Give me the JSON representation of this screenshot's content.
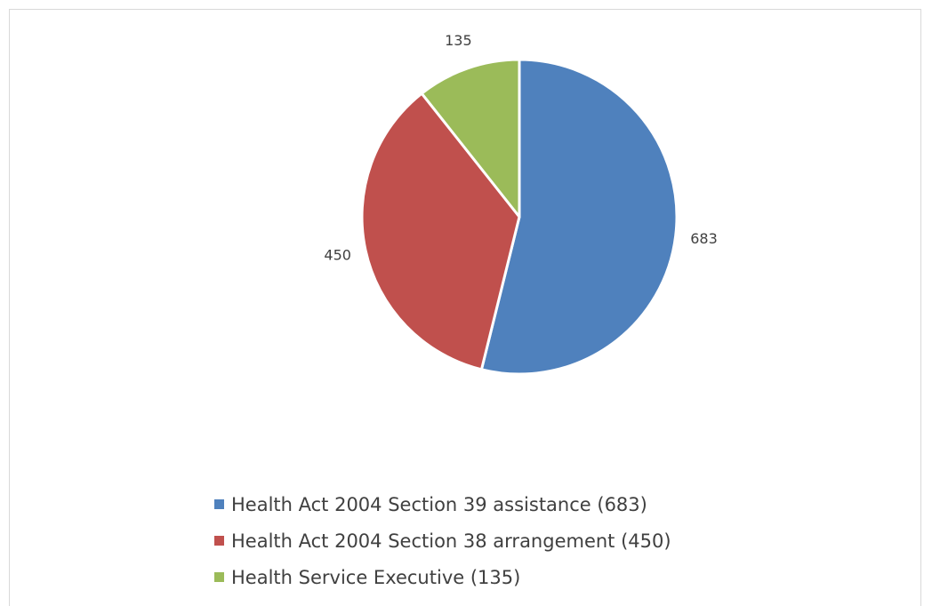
{
  "chart_data": {
    "type": "pie",
    "title": "",
    "categories": [
      "Health Act 2004 Section 39 assistance",
      "Health Act 2004 Section 38 arrangement",
      "Health Service Executive"
    ],
    "values": [
      683,
      450,
      135
    ],
    "data_labels": [
      "683",
      "450",
      "135"
    ],
    "legend_entries": [
      "Health Act 2004 Section 39 assistance (683)",
      "Health Act 2004 Section 38 arrangement (450)",
      "Health Service Executive (135)"
    ],
    "colors": [
      "#4f81bd",
      "#c0504d",
      "#9bbb59"
    ],
    "legend_placement": "bottom",
    "start_angle": "12 o'clock",
    "direction": "clockwise"
  }
}
